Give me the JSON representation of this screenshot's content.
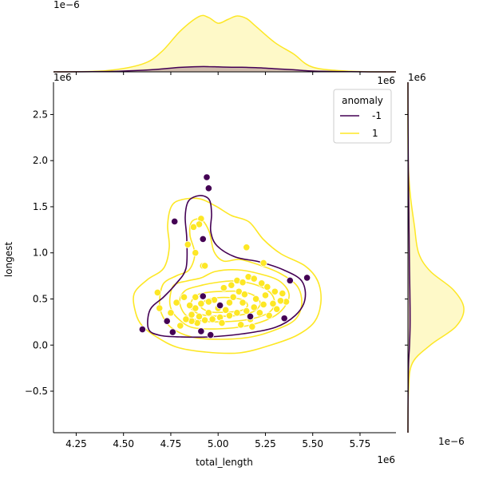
{
  "chart_data": {
    "type": "scatter",
    "subtype": "jointplot with kde contours and marginal kde",
    "xlabel": "total_length",
    "ylabel": "longest",
    "x_offset_label": "1e6",
    "y_offset_label": "1e6",
    "top_marginal_offset_label": "1e−6",
    "right_marginal_offset_label": "1e−6",
    "xlim": [
      4.13,
      5.94
    ],
    "ylim": [
      -0.95,
      2.85
    ],
    "x_ticks": [
      4.25,
      4.5,
      4.75,
      5.0,
      5.25,
      5.5,
      5.75
    ],
    "x_tick_labels": [
      "4.25",
      "4.50",
      "4.75",
      "5.00",
      "5.25",
      "5.50",
      "5.75"
    ],
    "y_ticks": [
      -0.5,
      0.0,
      0.5,
      1.0,
      1.5,
      2.0,
      2.5
    ],
    "y_tick_labels": [
      "−0.5",
      "0.0",
      "0.5",
      "1.0",
      "1.5",
      "2.0",
      "2.5"
    ],
    "grid": false,
    "legend": {
      "title": "anomaly",
      "position": "top-right",
      "entries": [
        {
          "label": "-1",
          "color": "#440154"
        },
        {
          "label": "1",
          "color": "#fde725"
        }
      ]
    },
    "series": [
      {
        "name": "-1",
        "color": "#440154",
        "points": [
          [
            4.94,
            1.82
          ],
          [
            4.95,
            1.7
          ],
          [
            4.92,
            1.15
          ],
          [
            4.77,
            1.34
          ],
          [
            5.38,
            0.7
          ],
          [
            5.47,
            0.73
          ],
          [
            4.6,
            0.17
          ],
          [
            4.73,
            0.26
          ],
          [
            4.76,
            0.14
          ],
          [
            4.91,
            0.15
          ],
          [
            4.96,
            0.11
          ],
          [
            5.17,
            0.31
          ],
          [
            5.35,
            0.29
          ],
          [
            4.92,
            0.53
          ],
          [
            5.01,
            0.43
          ]
        ]
      },
      {
        "name": "1",
        "color": "#fde725",
        "points": [
          [
            4.91,
            1.37
          ],
          [
            4.9,
            1.31
          ],
          [
            4.87,
            1.28
          ],
          [
            4.88,
            1.0
          ],
          [
            4.92,
            0.86
          ],
          [
            4.93,
            0.86
          ],
          [
            4.84,
            1.09
          ],
          [
            5.24,
            0.89
          ],
          [
            5.15,
            1.06
          ],
          [
            4.68,
            0.57
          ],
          [
            4.78,
            0.46
          ],
          [
            4.82,
            0.52
          ],
          [
            4.88,
            0.52
          ],
          [
            4.98,
            0.49
          ],
          [
            5.07,
            0.65
          ],
          [
            5.1,
            0.7
          ],
          [
            5.13,
            0.68
          ],
          [
            5.16,
            0.74
          ],
          [
            5.19,
            0.72
          ],
          [
            5.23,
            0.67
          ],
          [
            5.26,
            0.63
          ],
          [
            5.3,
            0.58
          ],
          [
            5.34,
            0.56
          ],
          [
            5.36,
            0.47
          ],
          [
            5.33,
            0.48
          ],
          [
            5.29,
            0.45
          ],
          [
            5.24,
            0.44
          ],
          [
            5.19,
            0.41
          ],
          [
            5.15,
            0.37
          ],
          [
            5.1,
            0.35
          ],
          [
            5.06,
            0.32
          ],
          [
            5.01,
            0.3
          ],
          [
            4.97,
            0.28
          ],
          [
            4.93,
            0.27
          ],
          [
            4.89,
            0.24
          ],
          [
            4.86,
            0.26
          ],
          [
            4.83,
            0.28
          ],
          [
            4.8,
            0.21
          ],
          [
            4.75,
            0.35
          ],
          [
            4.69,
            0.4
          ],
          [
            4.88,
            0.4
          ],
          [
            4.91,
            0.45
          ],
          [
            4.95,
            0.47
          ],
          [
            5.0,
            0.4
          ],
          [
            5.04,
            0.38
          ],
          [
            5.08,
            0.52
          ],
          [
            5.11,
            0.58
          ],
          [
            5.14,
            0.55
          ],
          [
            5.2,
            0.5
          ],
          [
            5.22,
            0.35
          ],
          [
            5.27,
            0.32
          ],
          [
            5.12,
            0.22
          ],
          [
            5.18,
            0.2
          ],
          [
            5.31,
            0.39
          ],
          [
            5.03,
            0.62
          ],
          [
            4.95,
            0.35
          ],
          [
            5.06,
            0.46
          ],
          [
            4.86,
            0.33
          ],
          [
            4.9,
            0.31
          ],
          [
            5.17,
            0.28
          ],
          [
            5.13,
            0.46
          ],
          [
            5.25,
            0.54
          ],
          [
            5.02,
            0.24
          ],
          [
            4.85,
            0.43
          ]
        ]
      }
    ],
    "marginal_x": {
      "x": [
        4.13,
        4.4,
        4.6,
        4.7,
        4.8,
        4.9,
        4.95,
        5.0,
        5.05,
        5.1,
        5.15,
        5.2,
        5.3,
        5.4,
        5.5,
        5.7,
        5.94
      ],
      "series_1": [
        0.0,
        0.02,
        0.15,
        0.38,
        0.78,
        1.06,
        1.04,
        0.93,
        1.0,
        1.07,
        1.02,
        0.87,
        0.56,
        0.34,
        0.09,
        0.01,
        0.0
      ],
      "series_neg1": [
        0.0,
        0.006,
        0.03,
        0.055,
        0.085,
        0.1,
        0.1,
        0.095,
        0.09,
        0.088,
        0.085,
        0.08,
        0.06,
        0.04,
        0.015,
        0.003,
        0.0
      ]
    },
    "marginal_y": {
      "y": [
        -0.95,
        -0.5,
        -0.2,
        0.0,
        0.2,
        0.4,
        0.6,
        0.8,
        1.0,
        1.3,
        1.6,
        1.9,
        2.3,
        2.85
      ],
      "series_1": [
        0.0,
        0.01,
        0.08,
        0.42,
        0.9,
        1.05,
        0.85,
        0.42,
        0.2,
        0.12,
        0.05,
        0.01,
        0.0,
        0.0
      ],
      "series_neg1": [
        0.0,
        0.003,
        0.012,
        0.03,
        0.04,
        0.04,
        0.036,
        0.03,
        0.025,
        0.02,
        0.014,
        0.008,
        0.003,
        0.0
      ]
    }
  }
}
